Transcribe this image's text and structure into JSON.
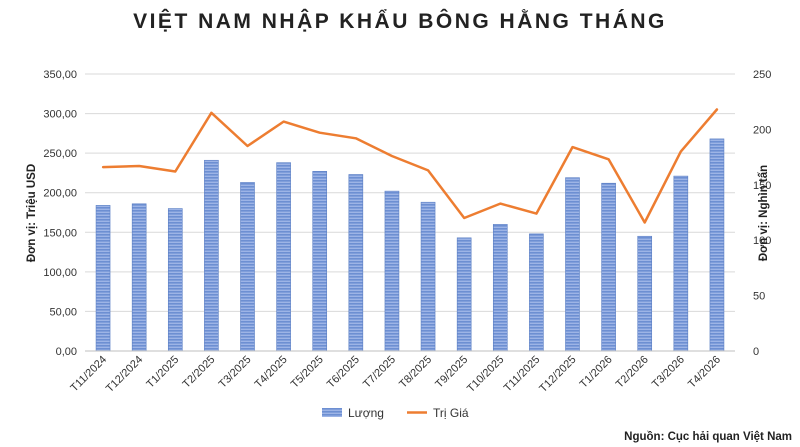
{
  "chart_data": {
    "type": "bar",
    "title": "VIỆT NAM NHẬP KHẨU BÔNG HẰNG THÁNG",
    "categories": [
      "T11/2024",
      "T12/2024",
      "T1/2025",
      "T2/2025",
      "T3/2025",
      "T4/2025",
      "T5/2025",
      "T6/2025",
      "T7/2025",
      "T8/2025",
      "T9/2025",
      "T10/2025",
      "T11/2025",
      "T12/2025",
      "T1/2026",
      "T2/2026",
      "T3/2026",
      "T4/2026"
    ],
    "series": [
      {
        "name": "Lượng",
        "type": "bar",
        "axis": "left",
        "color": "#6f8fd0",
        "values": [
          184,
          186,
          180,
          241,
          213,
          238,
          227,
          223,
          202,
          188,
          143,
          160,
          148,
          219,
          212,
          145,
          221,
          268
        ]
      },
      {
        "name": "Trị Giá",
        "type": "line",
        "axis": "right",
        "color": "#ed7d31",
        "values": [
          166,
          167,
          162,
          215,
          185,
          207,
          197,
          192,
          176,
          163,
          120,
          133,
          124,
          184,
          173,
          116,
          180,
          218
        ]
      }
    ],
    "ylabel": "Đơn vị: Triệu USD",
    "ylabel_right": "Đơn vị: Nghìn tấn",
    "ylim": [
      0,
      350
    ],
    "ylim_right": [
      0,
      250
    ],
    "y_ticks": [
      "0,00",
      "50,00",
      "100,00",
      "150,00",
      "200,00",
      "250,00",
      "300,00",
      "350,00"
    ],
    "y_ticks_right": [
      "0",
      "50",
      "100",
      "150",
      "200",
      "250"
    ],
    "grid": true,
    "legend": "bottom",
    "source": "Nguồn: Cục hải quan Việt Nam"
  }
}
